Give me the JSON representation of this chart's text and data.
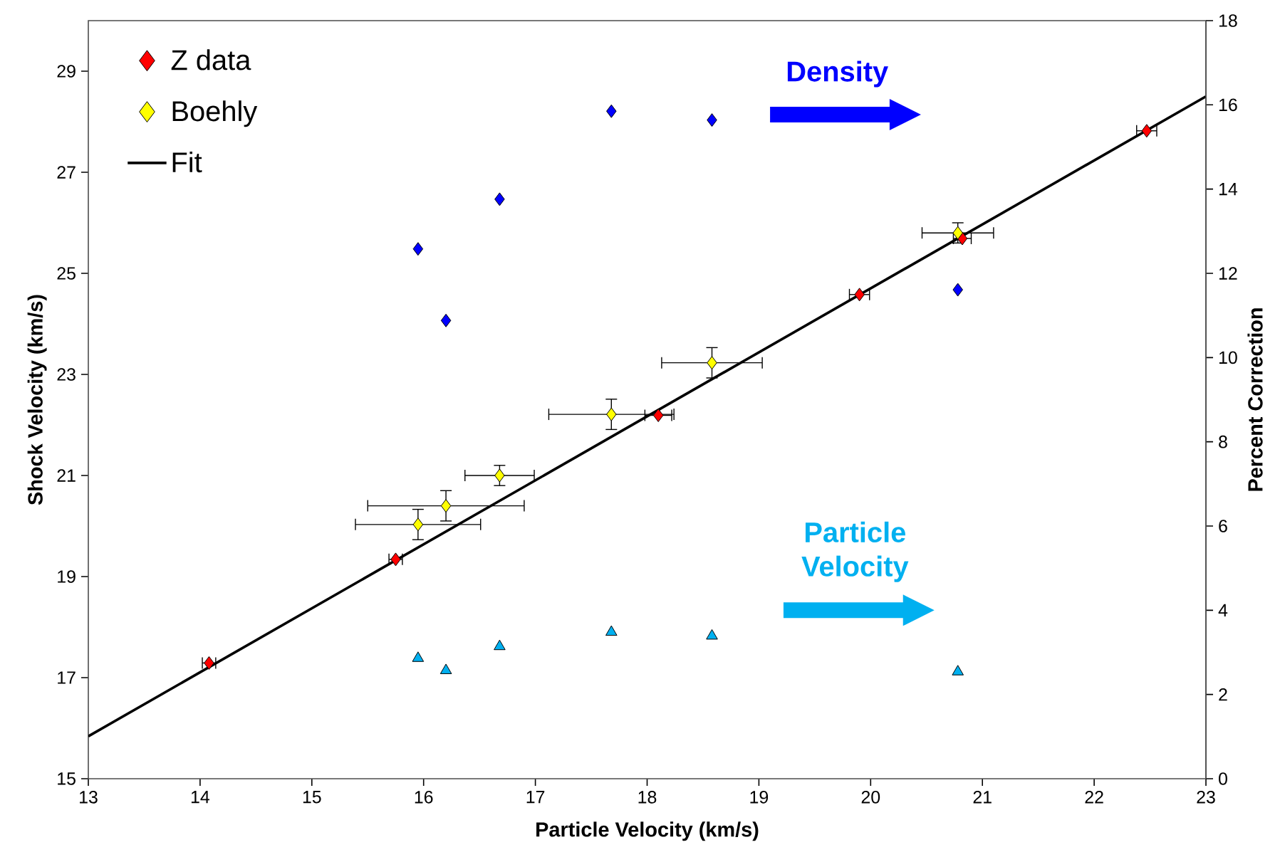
{
  "chart_data": {
    "type": "scatter",
    "xlabel": "Particle Velocity (km/s)",
    "ylabel": "Shock Velocity (km/s)",
    "y2label": "Percent Correction",
    "xlim": [
      13,
      23
    ],
    "xticks": [
      13,
      14,
      15,
      16,
      17,
      18,
      19,
      20,
      21,
      22,
      23
    ],
    "ylim": [
      15,
      30
    ],
    "yticks": [
      15,
      17,
      19,
      21,
      23,
      25,
      27,
      29
    ],
    "y2lim": [
      0,
      18
    ],
    "y2ticks": [
      0,
      2,
      4,
      6,
      8,
      10,
      12,
      14,
      16,
      18
    ],
    "legend": "top left",
    "series": [
      {
        "name": "Z data",
        "marker": "diamond",
        "color": "#ff0000",
        "x": [
          14.08,
          15.75,
          18.1,
          19.9,
          20.82,
          22.47
        ],
        "values": [
          17.29,
          19.34,
          22.19,
          24.58,
          25.69,
          27.82
        ],
        "xerrors": [
          0.06,
          0.06,
          0.12,
          0.09,
          0.08,
          0.09
        ]
      },
      {
        "name": "Boehly",
        "marker": "diamond",
        "color": "#ffff00",
        "x": [
          15.95,
          16.2,
          16.68,
          17.68,
          18.58,
          20.78
        ],
        "values": [
          20.03,
          20.4,
          21.0,
          22.21,
          23.23,
          25.8
        ],
        "errors": [
          0.3,
          0.3,
          0.2,
          0.3,
          0.3,
          0.2
        ],
        "xerrors": [
          0.56,
          0.7,
          0.31,
          0.56,
          0.45,
          0.32
        ]
      },
      {
        "name": "Fit",
        "type": "line",
        "marker": "none",
        "line_style": "solid",
        "color": "#000000",
        "x": [
          13,
          23
        ],
        "values": [
          15.84,
          28.5
        ]
      },
      {
        "name": "Density",
        "marker": "diamond",
        "color": "#0000ff",
        "axis": "y2",
        "x": [
          15.95,
          16.2,
          16.68,
          17.68,
          18.58,
          20.78
        ],
        "values": [
          12.58,
          10.88,
          13.76,
          15.85,
          15.64,
          11.61
        ]
      },
      {
        "name": "Particle Velocity",
        "marker": "triangle",
        "color": "#00b0f0",
        "axis": "y2",
        "x": [
          15.95,
          16.2,
          16.68,
          17.68,
          18.58,
          20.78
        ],
        "values": [
          2.86,
          2.57,
          3.14,
          3.48,
          3.39,
          2.54
        ]
      }
    ]
  }
}
